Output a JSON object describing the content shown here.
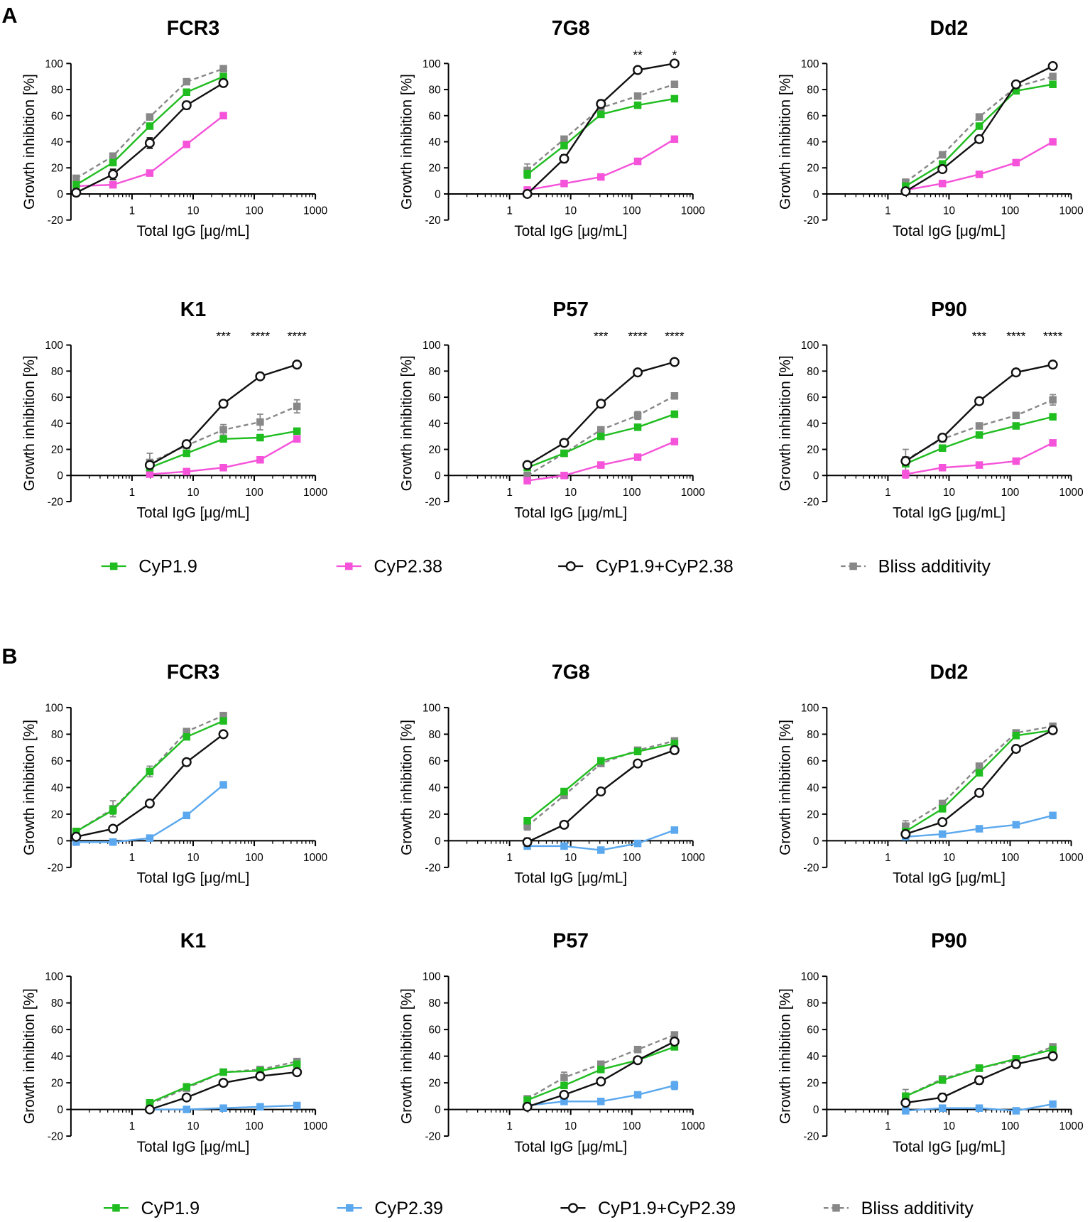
{
  "chart_data": [
    {
      "label": "A",
      "type": "line",
      "xlabel": "Total IgG [μg/mL]",
      "ylabel": "Growth inhibition [%]",
      "xlim": [
        0.1,
        1000
      ],
      "ylim": [
        -20,
        100
      ],
      "xticks": [
        1,
        10,
        100,
        1000
      ],
      "yticks": [
        -20,
        0,
        20,
        40,
        60,
        80,
        100
      ],
      "legend": [
        {
          "name": "CyP1.9",
          "color": "#20bd20",
          "marker": "square",
          "dashed": false
        },
        {
          "name": "CyP2.38",
          "color": "#f553d9",
          "marker": "square",
          "dashed": false
        },
        {
          "name": "CyP1.9+CyP2.38",
          "color": "#111111",
          "marker": "circle",
          "dashed": false
        },
        {
          "name": "Bliss additivity",
          "color": "#888888",
          "marker": "square",
          "dashed": true
        }
      ],
      "panels": [
        {
          "title": "FCR3",
          "x": [
            0.122,
            0.488,
            1.95,
            7.81,
            31.25
          ],
          "series": [
            {
              "values": [
                7,
                24,
                52,
                78,
                90
              ]
            },
            {
              "values": [
                6,
                7,
                16,
                38,
                60
              ]
            },
            {
              "values": [
                1,
                15,
                39,
                68,
                85
              ],
              "err": [
                1,
                4,
                4,
                3,
                2
              ]
            },
            {
              "values": [
                12,
                29,
                59,
                86,
                96
              ]
            }
          ],
          "annotations": []
        },
        {
          "title": "7G8",
          "x": [
            1.95,
            7.81,
            31.25,
            125,
            500
          ],
          "series": [
            {
              "values": [
                15,
                37,
                61,
                68,
                73
              ],
              "err": [
                3,
                2,
                1,
                1,
                1
              ]
            },
            {
              "values": [
                3,
                8,
                13,
                25,
                42
              ],
              "err": [
                0,
                0,
                1,
                2,
                1
              ]
            },
            {
              "values": [
                0,
                27,
                69,
                95,
                100
              ],
              "err": [
                1,
                3,
                3,
                1,
                1
              ]
            },
            {
              "values": [
                18,
                42,
                66,
                75,
                84
              ],
              "err": [
                5,
                2,
                2,
                2,
                1
              ]
            }
          ],
          "annotations": [
            {
              "x": 125,
              "text": "**"
            },
            {
              "x": 500,
              "text": "*"
            }
          ]
        },
        {
          "title": "Dd2",
          "x": [
            1.95,
            7.81,
            31.25,
            125,
            500
          ],
          "series": [
            {
              "values": [
                6,
                23,
                52,
                79,
                84
              ]
            },
            {
              "values": [
                3,
                8,
                15,
                24,
                40
              ],
              "err": [
                0,
                0,
                1,
                2,
                2
              ]
            },
            {
              "values": [
                2,
                19,
                42,
                84,
                98
              ],
              "err": [
                1,
                1,
                1,
                1,
                1
              ]
            },
            {
              "values": [
                9,
                30,
                59,
                82,
                90
              ],
              "err": [
                2,
                1,
                1,
                1,
                2
              ]
            }
          ],
          "annotations": []
        },
        {
          "title": "K1",
          "x": [
            1.95,
            7.81,
            31.25,
            125,
            500
          ],
          "series": [
            {
              "values": [
                6,
                17,
                28,
                29,
                34
              ]
            },
            {
              "values": [
                1,
                3,
                6,
                12,
                28
              ]
            },
            {
              "values": [
                8,
                24,
                55,
                76,
                85
              ],
              "err": [
                1,
                2,
                2,
                1,
                1
              ]
            },
            {
              "values": [
                10,
                23,
                35,
                41,
                53
              ],
              "err": [
                7,
                4,
                4,
                6,
                5
              ]
            }
          ],
          "annotations": [
            {
              "x": 31.25,
              "text": "***"
            },
            {
              "x": 125,
              "text": "****"
            },
            {
              "x": 500,
              "text": "****"
            }
          ]
        },
        {
          "title": "P57",
          "x": [
            1.95,
            7.81,
            31.25,
            125,
            500
          ],
          "series": [
            {
              "values": [
                6,
                17,
                30,
                37,
                47
              ]
            },
            {
              "values": [
                -4,
                0,
                8,
                14,
                26
              ]
            },
            {
              "values": [
                8,
                25,
                55,
                79,
                87
              ],
              "err": [
                1,
                1,
                2,
                2,
                1
              ]
            },
            {
              "values": [
                0,
                17,
                35,
                46,
                61
              ],
              "err": [
                1,
                1,
                1,
                3,
                2
              ]
            }
          ],
          "annotations": [
            {
              "x": 31.25,
              "text": "***"
            },
            {
              "x": 125,
              "text": "****"
            },
            {
              "x": 500,
              "text": "****"
            }
          ]
        },
        {
          "title": "P90",
          "x": [
            1.95,
            7.81,
            31.25,
            125,
            500
          ],
          "series": [
            {
              "values": [
                9,
                21,
                31,
                38,
                45
              ]
            },
            {
              "values": [
                1,
                6,
                8,
                11,
                25
              ],
              "err": [
                3,
                0,
                2,
                1,
                1
              ]
            },
            {
              "values": [
                11,
                29,
                57,
                79,
                85
              ],
              "err": [
                2,
                2,
                2,
                1,
                1
              ]
            },
            {
              "values": [
                12,
                28,
                38,
                46,
                58
              ],
              "err": [
                8,
                2,
                1,
                2,
                4
              ]
            }
          ],
          "annotations": [
            {
              "x": 31.25,
              "text": "***"
            },
            {
              "x": 125,
              "text": "****"
            },
            {
              "x": 500,
              "text": "****"
            }
          ]
        }
      ]
    },
    {
      "label": "B",
      "type": "line",
      "xlabel": "Total IgG [μg/mL]",
      "ylabel": "Growth inhibition [%]",
      "xlim": [
        0.1,
        1000
      ],
      "ylim": [
        -20,
        100
      ],
      "xticks": [
        1,
        10,
        100,
        1000
      ],
      "yticks": [
        -20,
        0,
        20,
        40,
        60,
        80,
        100
      ],
      "legend": [
        {
          "name": "CyP1.9",
          "color": "#20bd20",
          "marker": "square",
          "dashed": false
        },
        {
          "name": "CyP2.39",
          "color": "#5ba8ee",
          "marker": "square",
          "dashed": false
        },
        {
          "name": "CyP1.9+CyP2.39",
          "color": "#111111",
          "marker": "circle",
          "dashed": false
        },
        {
          "name": "Bliss additivity",
          "color": "#888888",
          "marker": "square",
          "dashed": true
        }
      ],
      "panels": [
        {
          "title": "FCR3",
          "x": [
            0.122,
            0.488,
            1.95,
            7.81,
            31.25
          ],
          "series": [
            {
              "values": [
                7,
                23,
                52,
                78,
                90
              ],
              "err": [
                1,
                3,
                2,
                1,
                2
              ]
            },
            {
              "values": [
                -1,
                -1,
                2,
                19,
                42
              ],
              "err": [
                1,
                1,
                1,
                1,
                1
              ]
            },
            {
              "values": [
                3,
                9,
                28,
                59,
                80
              ],
              "err": [
                1,
                2,
                1,
                2,
                1
              ]
            },
            {
              "values": [
                7,
                24,
                52,
                82,
                94
              ],
              "err": [
                1,
                6,
                4,
                2,
                1
              ]
            }
          ],
          "annotations": []
        },
        {
          "title": "7G8",
          "x": [
            1.95,
            7.81,
            31.25,
            125,
            500
          ],
          "series": [
            {
              "values": [
                15,
                37,
                60,
                67,
                73
              ],
              "err": [
                1,
                1,
                1,
                1,
                1
              ]
            },
            {
              "values": [
                -4,
                -4,
                -7,
                -2,
                8
              ],
              "err": [
                0,
                0,
                1,
                1,
                1
              ]
            },
            {
              "values": [
                -1,
                12,
                37,
                58,
                68
              ],
              "err": [
                3,
                1,
                1,
                1,
                1
              ]
            },
            {
              "values": [
                11,
                34,
                58,
                68,
                75
              ],
              "err": [
                3,
                2,
                1,
                1,
                2
              ]
            }
          ],
          "annotations": []
        },
        {
          "title": "Dd2",
          "x": [
            1.95,
            7.81,
            31.25,
            125,
            500
          ],
          "series": [
            {
              "values": [
                7,
                24,
                51,
                79,
                83
              ]
            },
            {
              "values": [
                3,
                5,
                9,
                12,
                19
              ],
              "err": [
                0,
                1,
                2,
                1,
                2
              ]
            },
            {
              "values": [
                5,
                14,
                36,
                69,
                83
              ]
            },
            {
              "values": [
                11,
                28,
                56,
                81,
                86
              ],
              "err": [
                4,
                2,
                2,
                1,
                1
              ]
            }
          ],
          "annotations": []
        },
        {
          "title": "K1",
          "x": [
            1.95,
            7.81,
            31.25,
            125,
            500
          ],
          "series": [
            {
              "values": [
                5,
                17,
                28,
                29,
                34
              ]
            },
            {
              "values": [
                0,
                0,
                1,
                2,
                3
              ]
            },
            {
              "values": [
                0,
                9,
                20,
                25,
                28
              ]
            },
            {
              "values": [
                4,
                16,
                28,
                30,
                36
              ],
              "err": [
                1,
                1,
                1,
                1,
                2
              ]
            }
          ],
          "annotations": []
        },
        {
          "title": "P57",
          "x": [
            1.95,
            7.81,
            31.25,
            125,
            500
          ],
          "series": [
            {
              "values": [
                7,
                18,
                30,
                37,
                47
              ],
              "err": [
                0,
                1,
                1,
                1,
                2
              ]
            },
            {
              "values": [
                3,
                6,
                6,
                11,
                18
              ],
              "err": [
                0,
                1,
                2,
                2,
                3
              ]
            },
            {
              "values": [
                2,
                11,
                21,
                37,
                51
              ],
              "err": [
                1,
                1,
                1,
                1,
                2
              ]
            },
            {
              "values": [
                8,
                24,
                34,
                45,
                56
              ],
              "err": [
                2,
                4,
                2,
                2,
                2
              ]
            }
          ],
          "annotations": []
        },
        {
          "title": "P90",
          "x": [
            1.95,
            7.81,
            31.25,
            125,
            500
          ],
          "series": [
            {
              "values": [
                10,
                22,
                31,
                38,
                45
              ],
              "err": [
                2,
                2,
                1,
                1,
                2
              ]
            },
            {
              "values": [
                -1,
                1,
                1,
                -1,
                4
              ],
              "err": [
                1,
                2,
                1,
                1,
                1
              ]
            },
            {
              "values": [
                5,
                9,
                22,
                34,
                40
              ],
              "err": [
                1,
                3,
                3,
                1,
                1
              ]
            },
            {
              "values": [
                10,
                23,
                31,
                37,
                47
              ],
              "err": [
                5,
                2,
                1,
                1,
                2
              ]
            }
          ],
          "annotations": []
        }
      ]
    }
  ]
}
